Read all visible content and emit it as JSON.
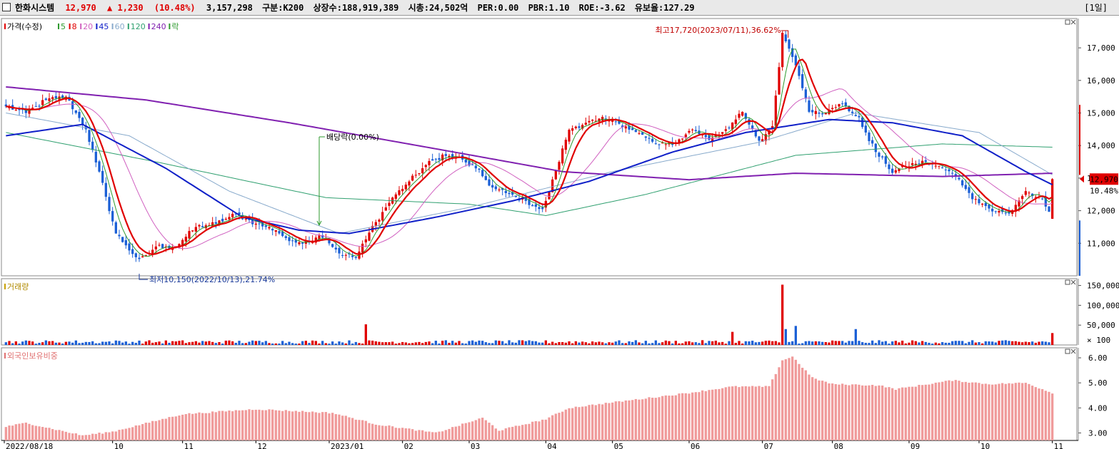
{
  "header": {
    "name": "한화시스템",
    "price": "12,970",
    "change": "▲ 1,230",
    "change_pct": "(10.48%)",
    "volume": "3,157,298",
    "market": "구분:K200",
    "shares": "상장수:188,919,389",
    "mcap": "시총:24,502억",
    "per": "PER:0.00",
    "pbr": "PBR:1.10",
    "roe": "ROE:-3.62",
    "float_ratio": "유보율:127.29",
    "period": "[1일]"
  },
  "colors": {
    "up": "#e00000",
    "down": "#1a5fd6",
    "ma5": "#2e9a2e",
    "ma8": "#e00000",
    "ma20": "#d060c0",
    "ma45": "#1020c8",
    "ma60": "#88aacc",
    "ma120": "#30a070",
    "ma240": "#8020b0"
  },
  "price_panel": {
    "legend": [
      {
        "label": "가격(수정)",
        "color": "#e00000"
      },
      {
        "label": "5",
        "color": "#2e9a2e"
      },
      {
        "label": "8",
        "color": "#e00000"
      },
      {
        "label": "20",
        "color": "#d060c0"
      },
      {
        "label": "45",
        "color": "#1020c8"
      },
      {
        "label": "60",
        "color": "#88aacc"
      },
      {
        "label": "120",
        "color": "#30a070"
      },
      {
        "label": "240",
        "color": "#8020b0"
      },
      {
        "label": "락",
        "color": "#2e9a2e"
      }
    ],
    "annotations": {
      "high": "최고17,720(2023/07/11),36.62%",
      "low": "최저10,150(2022/10/13),21.74%",
      "dividend": "배당락(0.00%)"
    },
    "last_price_tag": "12,970",
    "last_pct_tag": "10.48%"
  },
  "volume_panel": {
    "legend": "거래량",
    "unit_note": "× 100"
  },
  "foreign_panel": {
    "legend": "외국인보유비중"
  },
  "chart_data": [
    {
      "type": "candlestick",
      "title": "한화시스템 가격(수정)",
      "ylim": [
        10000,
        17900
      ],
      "y_ticks": [
        11000,
        12000,
        13000,
        14000,
        15000,
        16000,
        17000
      ],
      "x_tick_labels": [
        "2022/08/18",
        "10",
        "11",
        "12",
        "2023/01",
        "02",
        "03",
        "04",
        "05",
        "06",
        "07",
        "08",
        "09",
        "10",
        "11"
      ],
      "x_tick_dates": [
        "2022-08-18",
        "2022-10-01",
        "2022-11-01",
        "2022-12-01",
        "2023-01-01",
        "2023-02-01",
        "2023-03-01",
        "2023-04-01",
        "2023-05-01",
        "2023-06-01",
        "2023-07-01",
        "2023-08-01",
        "2023-09-01",
        "2023-10-01",
        "2023-11-01"
      ],
      "close_keyframes": [
        [
          "2022-08-18",
          15200
        ],
        [
          "2022-08-26",
          15000
        ],
        [
          "2022-09-05",
          15400
        ],
        [
          "2022-09-13",
          15500
        ],
        [
          "2022-09-21",
          14500
        ],
        [
          "2022-09-28",
          12800
        ],
        [
          "2022-10-04",
          11300
        ],
        [
          "2022-10-13",
          10450
        ],
        [
          "2022-10-20",
          10900
        ],
        [
          "2022-10-28",
          10900
        ],
        [
          "2022-11-07",
          11500
        ],
        [
          "2022-11-15",
          11600
        ],
        [
          "2022-11-23",
          11900
        ],
        [
          "2022-12-01",
          11600
        ],
        [
          "2022-12-09",
          11400
        ],
        [
          "2022-12-16",
          11000
        ],
        [
          "2022-12-23",
          11100
        ],
        [
          "2022-12-29",
          11250
        ],
        [
          "2023-01-05",
          10700
        ],
        [
          "2023-01-12",
          10550
        ],
        [
          "2023-01-19",
          11500
        ],
        [
          "2023-01-27",
          12400
        ],
        [
          "2023-02-03",
          12900
        ],
        [
          "2023-02-10",
          13400
        ],
        [
          "2023-02-17",
          13700
        ],
        [
          "2023-02-24",
          13600
        ],
        [
          "2023-03-03",
          13300
        ],
        [
          "2023-03-10",
          12700
        ],
        [
          "2023-03-17",
          12500
        ],
        [
          "2023-03-24",
          12300
        ],
        [
          "2023-03-31",
          12000
        ],
        [
          "2023-04-05",
          12900
        ],
        [
          "2023-04-12",
          14500
        ],
        [
          "2023-04-19",
          14700
        ],
        [
          "2023-04-26",
          14800
        ],
        [
          "2023-05-03",
          14700
        ],
        [
          "2023-05-12",
          14300
        ],
        [
          "2023-05-19",
          14000
        ],
        [
          "2023-05-26",
          14100
        ],
        [
          "2023-06-02",
          14500
        ],
        [
          "2023-06-09",
          14200
        ],
        [
          "2023-06-16",
          14500
        ],
        [
          "2023-06-23",
          15000
        ],
        [
          "2023-06-30",
          14100
        ],
        [
          "2023-07-06",
          14600
        ],
        [
          "2023-07-11",
          17400
        ],
        [
          "2023-07-14",
          16800
        ],
        [
          "2023-07-21",
          15100
        ],
        [
          "2023-07-28",
          15000
        ],
        [
          "2023-08-04",
          15300
        ],
        [
          "2023-08-11",
          14800
        ],
        [
          "2023-08-18",
          13800
        ],
        [
          "2023-08-25",
          13200
        ],
        [
          "2023-09-01",
          13400
        ],
        [
          "2023-09-08",
          13500
        ],
        [
          "2023-09-15",
          13300
        ],
        [
          "2023-09-22",
          13000
        ],
        [
          "2023-09-27",
          12500
        ],
        [
          "2023-10-06",
          12000
        ],
        [
          "2023-10-13",
          11900
        ],
        [
          "2023-10-20",
          12600
        ],
        [
          "2023-10-27",
          12300
        ],
        [
          "2023-10-31",
          11950
        ],
        [
          "2023-11-01",
          12970
        ]
      ],
      "last_candle": {
        "date": "2023-11-01",
        "open": 11750,
        "high": 13000,
        "low": 11750,
        "close": 12970
      },
      "moving_averages": {
        "ma45": [
          [
            "2022-08-18",
            14300
          ],
          [
            "2022-09-20",
            14650
          ],
          [
            "2022-10-25",
            13300
          ],
          [
            "2022-11-25",
            11800
          ],
          [
            "2022-12-20",
            11400
          ],
          [
            "2023-01-10",
            11300
          ],
          [
            "2023-02-15",
            11800
          ],
          [
            "2023-03-20",
            12300
          ],
          [
            "2023-04-20",
            12900
          ],
          [
            "2023-05-25",
            13800
          ],
          [
            "2023-06-25",
            14400
          ],
          [
            "2023-07-31",
            14800
          ],
          [
            "2023-08-25",
            14700
          ],
          [
            "2023-09-25",
            14300
          ],
          [
            "2023-10-20",
            13200
          ],
          [
            "2023-11-01",
            12800
          ]
        ],
        "ma240": [
          [
            "2022-08-18",
            15800
          ],
          [
            "2022-10-15",
            15400
          ],
          [
            "2022-12-15",
            14700
          ],
          [
            "2023-02-15",
            13900
          ],
          [
            "2023-04-10",
            13200
          ],
          [
            "2023-06-01",
            12950
          ],
          [
            "2023-07-15",
            13150
          ],
          [
            "2023-09-15",
            13050
          ],
          [
            "2023-11-01",
            13150
          ]
        ],
        "ma120": [
          [
            "2022-08-18",
            14400
          ],
          [
            "2022-10-20",
            13500
          ],
          [
            "2022-12-30",
            12400
          ],
          [
            "2023-03-01",
            12200
          ],
          [
            "2023-04-01",
            11850
          ],
          [
            "2023-05-15",
            12500
          ],
          [
            "2023-07-15",
            13700
          ],
          [
            "2023-09-15",
            14050
          ],
          [
            "2023-11-01",
            13950
          ]
        ],
        "ma60": [
          [
            "2022-08-18",
            15000
          ],
          [
            "2022-10-10",
            14300
          ],
          [
            "2022-11-20",
            12600
          ],
          [
            "2023-01-05",
            11300
          ],
          [
            "2023-03-01",
            12100
          ],
          [
            "2023-04-30",
            13200
          ],
          [
            "2023-06-30",
            14100
          ],
          [
            "2023-08-10",
            15000
          ],
          [
            "2023-09-30",
            14400
          ],
          [
            "2023-11-01",
            13100
          ]
        ]
      }
    },
    {
      "type": "bar",
      "title": "거래량",
      "y_ticks": [
        50000,
        100000,
        150000
      ],
      "y_unit": "× 100",
      "ylim": [
        0,
        160000
      ],
      "notable_values": [
        {
          "date": "2023-01-17",
          "value": 52000
        },
        {
          "date": "2023-07-11",
          "value": 152000
        },
        {
          "date": "2023-07-12",
          "value": 40000
        },
        {
          "date": "2023-07-17",
          "value": 48000
        },
        {
          "date": "2023-08-10",
          "value": 40000
        },
        {
          "date": "2023-06-20",
          "value": 33000
        },
        {
          "date": "2023-11-01",
          "value": 30000
        }
      ],
      "typical_value": 8000
    },
    {
      "type": "bar",
      "title": "외국인보유비중",
      "y_ticks": [
        3.0,
        4.0,
        5.0,
        6.0
      ],
      "ylim": [
        2.7,
        6.4
      ],
      "keyframes": [
        [
          "2022-08-18",
          3.25
        ],
        [
          "2022-08-26",
          3.4
        ],
        [
          "2022-09-20",
          2.9
        ],
        [
          "2022-10-01",
          3.05
        ],
        [
          "2022-11-01",
          3.75
        ],
        [
          "2022-12-01",
          3.95
        ],
        [
          "2023-01-03",
          3.8
        ],
        [
          "2023-01-20",
          3.35
        ],
        [
          "2023-02-15",
          3.0
        ],
        [
          "2023-03-07",
          3.6
        ],
        [
          "2023-03-14",
          3.1
        ],
        [
          "2023-04-01",
          3.55
        ],
        [
          "2023-04-12",
          4.0
        ],
        [
          "2023-06-01",
          4.6
        ],
        [
          "2023-06-20",
          4.85
        ],
        [
          "2023-07-05",
          4.85
        ],
        [
          "2023-07-11",
          5.9
        ],
        [
          "2023-07-14",
          6.05
        ],
        [
          "2023-07-24",
          5.2
        ],
        [
          "2023-08-01",
          4.95
        ],
        [
          "2023-08-20",
          4.9
        ],
        [
          "2023-08-28",
          4.75
        ],
        [
          "2023-09-20",
          5.1
        ],
        [
          "2023-10-05",
          4.95
        ],
        [
          "2023-10-20",
          5.0
        ],
        [
          "2023-11-01",
          4.6
        ]
      ]
    }
  ]
}
